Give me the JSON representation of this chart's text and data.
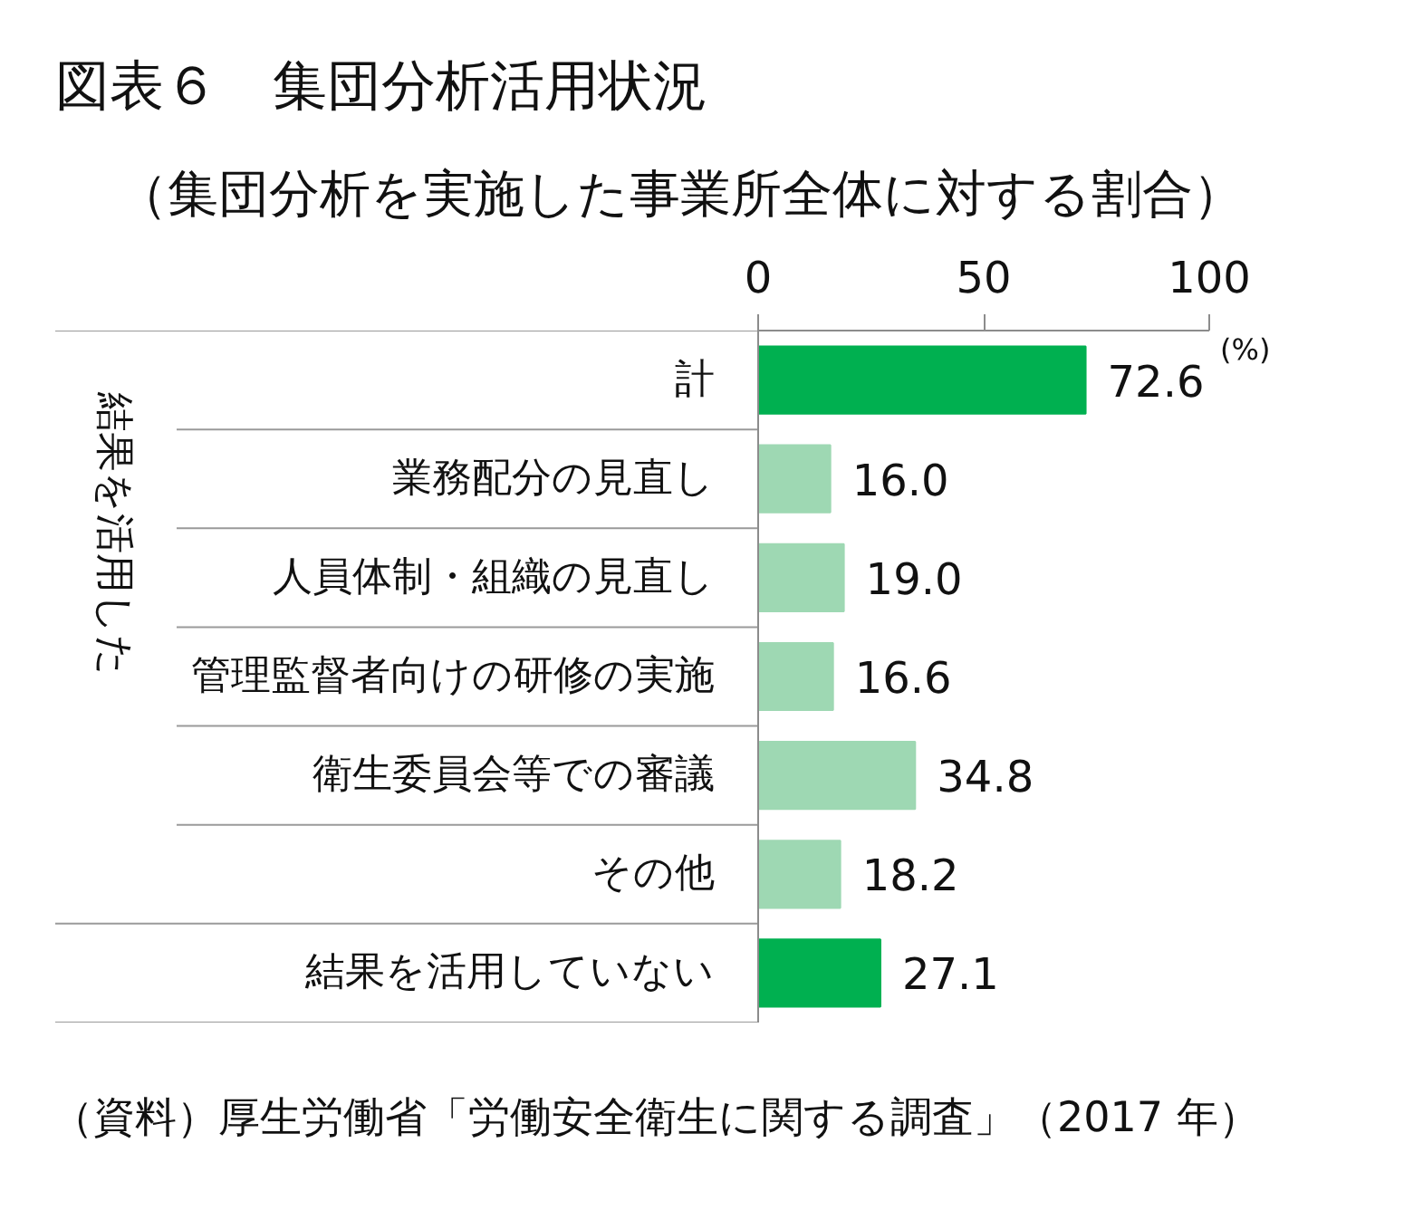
{
  "chart_data": {
    "type": "bar",
    "orientation": "horizontal",
    "title": "図表６　集団分析活用状況",
    "subtitle": "（集団分析を実施した事業所全体に対する割合）",
    "xlabel": "(%)",
    "categories": [
      "計",
      "業務配分の見直し",
      "人員体制・組織の見直し",
      "管理監督者向けの研修の実施",
      "衛生委員会等での審議",
      "その他",
      "結果を活用していない"
    ],
    "values": [
      72.6,
      16.0,
      19.0,
      16.6,
      34.8,
      18.2,
      27.1
    ],
    "value_labels": [
      "72.6",
      "16.0",
      "19.0",
      "16.6",
      "34.8",
      "18.2",
      "27.1"
    ],
    "colors": [
      "#00b050",
      "#9ed8b3",
      "#9ed8b3",
      "#9ed8b3",
      "#9ed8b3",
      "#9ed8b3",
      "#00b050"
    ],
    "xlim": [
      0,
      100
    ],
    "xticks": [
      0,
      50,
      100
    ],
    "annotations": [
      "結果を活用した",
      "（資料）厚生労働省「労働安全衛生に関する調査」（2017 年）"
    ]
  }
}
